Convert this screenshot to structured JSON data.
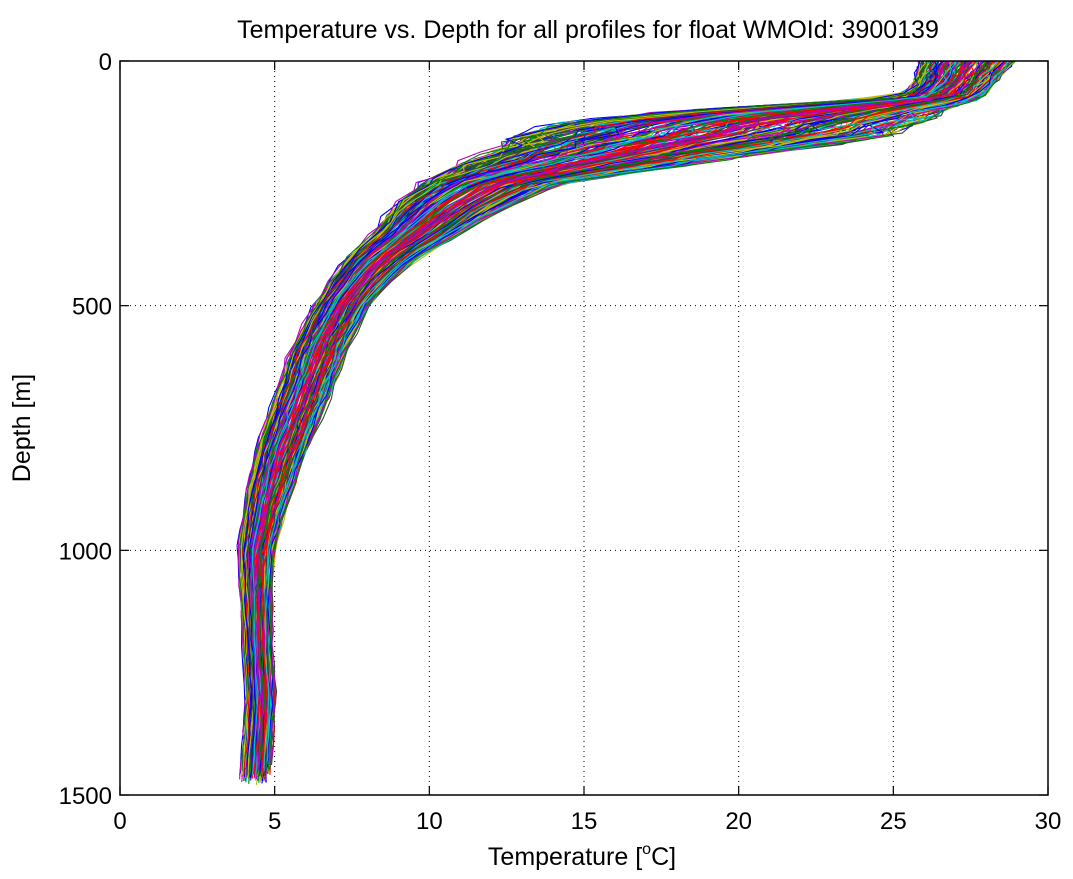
{
  "chart_data": {
    "type": "line",
    "title": "Temperature vs. Depth for all profiles for float WMOId: 3900139",
    "xlabel_prefix": "Temperature [",
    "xlabel_sup": "o",
    "xlabel_suffix": "C]",
    "ylabel": "Depth [m]",
    "xlim": [
      0,
      30
    ],
    "ylim": [
      0,
      1500
    ],
    "y_reversed": true,
    "grid": true,
    "xticks": [
      0,
      5,
      10,
      15,
      20,
      25,
      30
    ],
    "yticks": [
      0,
      500,
      1000,
      1500
    ],
    "xtick_labels": [
      "0",
      "5",
      "10",
      "15",
      "20",
      "25",
      "30"
    ],
    "ytick_labels": [
      "0",
      "500",
      "1000",
      "1500"
    ],
    "colors": [
      "#0000ff",
      "#008000",
      "#ff0000",
      "#00bfbf",
      "#bf00bf",
      "#bfbf00",
      "#404040"
    ],
    "profile_count": 240,
    "envelope": {
      "depth": [
        0,
        25,
        50,
        75,
        100,
        125,
        150,
        175,
        200,
        250,
        300,
        350,
        400,
        450,
        500,
        550,
        600,
        650,
        700,
        800,
        900,
        1000,
        1100,
        1200,
        1300,
        1400,
        1480
      ],
      "temp_min": [
        25.4,
        25.3,
        25.2,
        24.6,
        17.0,
        12.5,
        11.0,
        10.5,
        10.0,
        9.0,
        8.2,
        7.8,
        7.0,
        6.5,
        6.0,
        5.6,
        5.2,
        5.0,
        4.7,
        4.2,
        3.9,
        3.7,
        3.8,
        3.9,
        4.0,
        3.9,
        3.8
      ],
      "temp_max": [
        29.4,
        29.0,
        28.6,
        28.3,
        28.0,
        27.6,
        27.0,
        24.0,
        21.0,
        15.0,
        13.0,
        11.5,
        10.0,
        9.0,
        8.3,
        7.9,
        7.5,
        7.2,
        6.9,
        6.2,
        5.6,
        5.1,
        5.0,
        5.0,
        5.1,
        5.0,
        4.9
      ]
    }
  }
}
